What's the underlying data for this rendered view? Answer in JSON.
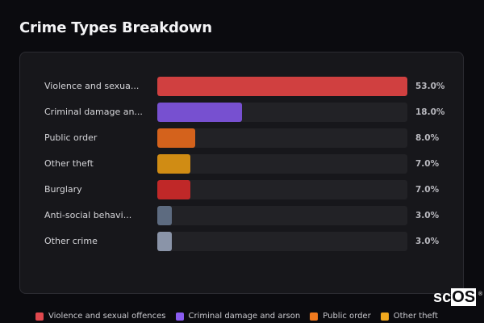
{
  "title": "Crime Types Breakdown",
  "rows": [
    {
      "label": "Violence and sexua...",
      "pct_text": "53.0%",
      "value": 53.0,
      "color": "#d04040"
    },
    {
      "label": "Criminal damage an...",
      "pct_text": "18.0%",
      "value": 18.0,
      "color": "#7750d0"
    },
    {
      "label": "Public order",
      "pct_text": "8.0%",
      "value": 8.0,
      "color": "#d4621c"
    },
    {
      "label": "Other theft",
      "pct_text": "7.0%",
      "value": 7.0,
      "color": "#d08c14"
    },
    {
      "label": "Burglary",
      "pct_text": "7.0%",
      "value": 7.0,
      "color": "#c02828"
    },
    {
      "label": "Anti-social behavi...",
      "pct_text": "3.0%",
      "value": 3.0,
      "color": "#5d6b80"
    },
    {
      "label": "Other crime",
      "pct_text": "3.0%",
      "value": 3.0,
      "color": "#8a94a8"
    }
  ],
  "legend": [
    {
      "label": "Violence and sexual offences",
      "color": "#e0484e"
    },
    {
      "label": "Criminal damage and arson",
      "color": "#8a5cf0"
    },
    {
      "label": "Public order",
      "color": "#f07a1e"
    },
    {
      "label": "Other theft",
      "color": "#f0a81e"
    }
  ],
  "logo": {
    "sc": "sc",
    "os": "OS",
    "reg": "®"
  },
  "chart_data": {
    "type": "bar",
    "orientation": "horizontal",
    "title": "Crime Types Breakdown",
    "categories": [
      "Violence and sexual offences",
      "Criminal damage and arson",
      "Public order",
      "Other theft",
      "Burglary",
      "Anti-social behaviour",
      "Other crime"
    ],
    "category_labels_shown": [
      "Violence and sexua...",
      "Criminal damage an...",
      "Public order",
      "Other theft",
      "Burglary",
      "Anti-social behavi...",
      "Other crime"
    ],
    "values": [
      53.0,
      18.0,
      8.0,
      7.0,
      7.0,
      3.0,
      3.0
    ],
    "value_labels": [
      "53.0%",
      "18.0%",
      "8.0%",
      "7.0%",
      "7.0%",
      "3.0%",
      "3.0%"
    ],
    "unit": "%",
    "xlabel": "",
    "ylabel": "",
    "xlim": [
      0,
      53
    ],
    "grid": false,
    "legend_position": "bottom",
    "legend_entries": [
      "Violence and sexual offences",
      "Criminal damage and arson",
      "Public order",
      "Other theft"
    ]
  }
}
